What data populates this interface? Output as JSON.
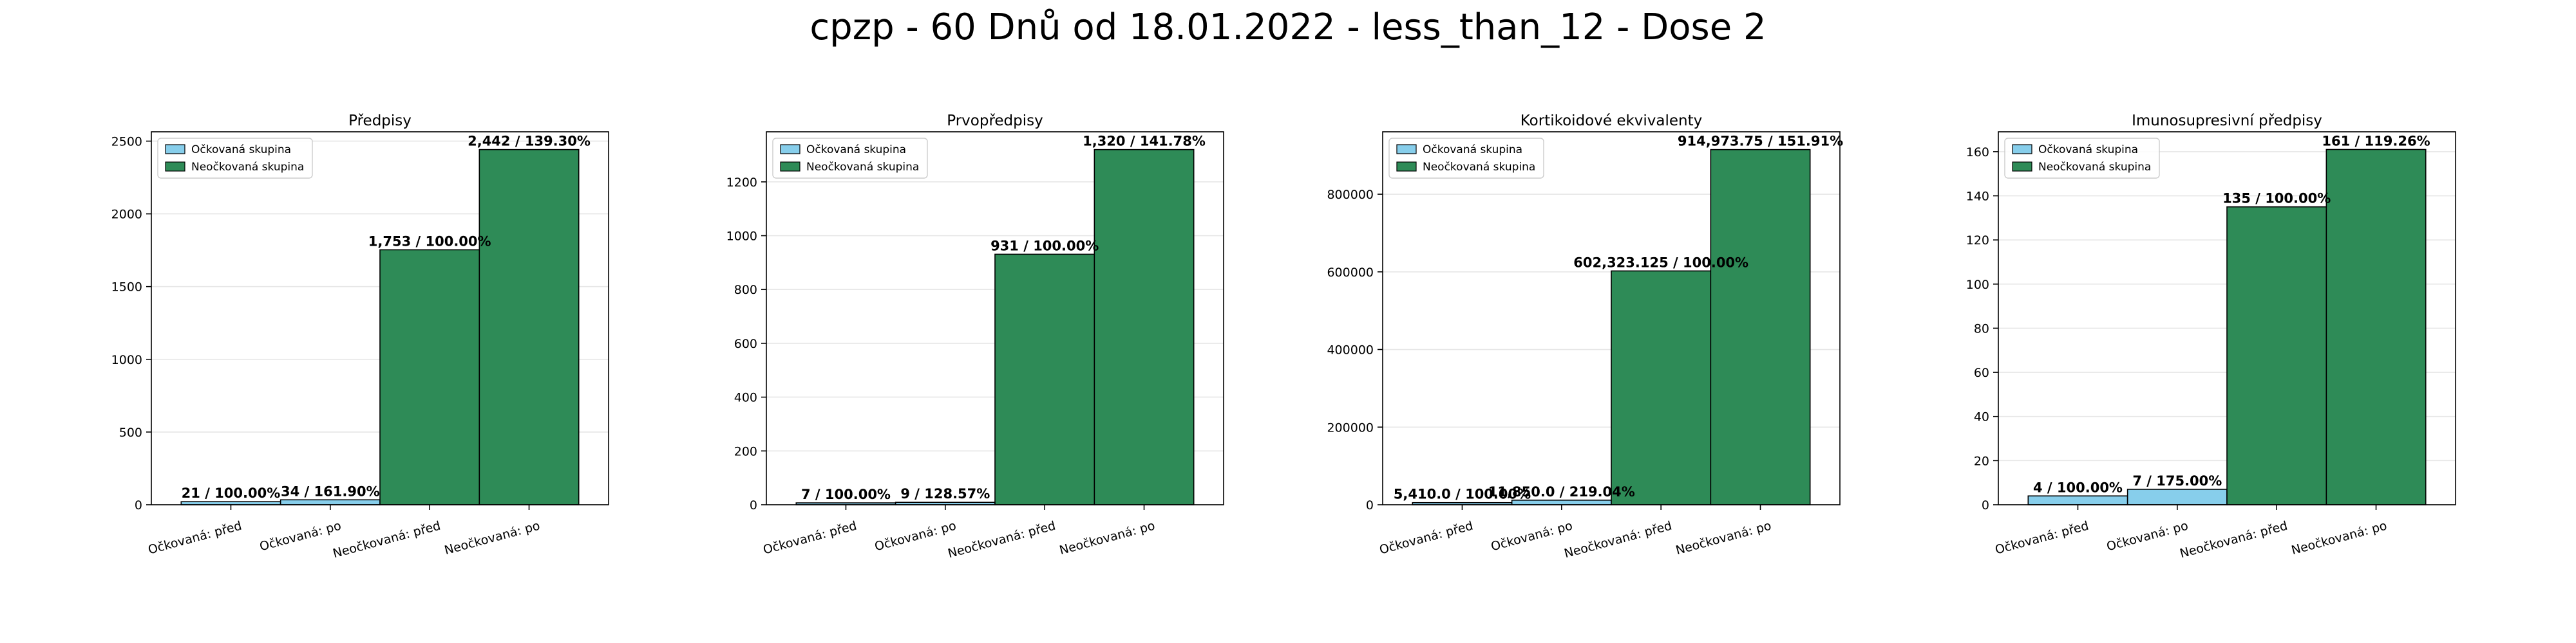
{
  "figure": {
    "suptitle": "cpzp - 60 Dnů od 18.01.2022 - less_than_12 - Dose 2"
  },
  "colors": {
    "vaccinated": "#87CEEB",
    "unvaccinated": "#2E8B57",
    "bar_edge": "#000000"
  },
  "legend": {
    "vaccinated_label": "Očkovaná skupina",
    "unvaccinated_label": "Neočkovaná skupina"
  },
  "chart_data": [
    {
      "type": "bar",
      "title": "Předpisy",
      "categories": [
        "Očkovaná: před",
        "Očkovaná: po",
        "Neočkovaná: před",
        "Neočkovaná: po"
      ],
      "values": [
        21,
        34,
        1753,
        2442
      ],
      "bar_labels": [
        "21 / 100.00%",
        "34 / 161.90%",
        "1,753 / 100.00%",
        "2,442 / 139.30%"
      ],
      "groups": [
        "vaccinated",
        "vaccinated",
        "unvaccinated",
        "unvaccinated"
      ],
      "yticks": [
        0,
        500,
        1000,
        1500,
        2000,
        2500
      ],
      "ylim": [
        0,
        2564
      ],
      "legend_position": "upper-left",
      "grid": "y"
    },
    {
      "type": "bar",
      "title": "Prvopředpisy",
      "categories": [
        "Očkovaná: před",
        "Očkovaná: po",
        "Neočkovaná: před",
        "Neočkovaná: po"
      ],
      "values": [
        7,
        9,
        931,
        1320
      ],
      "bar_labels": [
        "7 / 100.00%",
        "9 / 128.57%",
        "931 / 100.00%",
        "1,320 / 141.78%"
      ],
      "groups": [
        "vaccinated",
        "vaccinated",
        "unvaccinated",
        "unvaccinated"
      ],
      "yticks": [
        0,
        200,
        400,
        600,
        800,
        1000,
        1200
      ],
      "ylim": [
        0,
        1386
      ],
      "legend_position": "upper-left",
      "grid": "y"
    },
    {
      "type": "bar",
      "title": "Kortikoidové ekvivalenty",
      "categories": [
        "Očkovaná: před",
        "Očkovaná: po",
        "Neočkovaná: před",
        "Neočkovaná: po"
      ],
      "values": [
        5410.0,
        11850.0,
        602323.125,
        914973.75
      ],
      "bar_labels": [
        "5,410.0 / 100.00%",
        "11,850.0 / 219.04%",
        "602,323.125 / 100.00%",
        "914,973.75 / 151.91%"
      ],
      "groups": [
        "vaccinated",
        "vaccinated",
        "unvaccinated",
        "unvaccinated"
      ],
      "yticks": [
        0,
        200000,
        400000,
        600000,
        800000
      ],
      "ylim": [
        0,
        960722
      ],
      "legend_position": "upper-left",
      "grid": "y"
    },
    {
      "type": "bar",
      "title": "Imunosupresivní předpisy",
      "categories": [
        "Očkovaná: před",
        "Očkovaná: po",
        "Neočkovaná: před",
        "Neočkovaná: po"
      ],
      "values": [
        4,
        7,
        135,
        161
      ],
      "bar_labels": [
        "4 / 100.00%",
        "7 / 175.00%",
        "135 / 100.00%",
        "161 / 119.26%"
      ],
      "groups": [
        "vaccinated",
        "vaccinated",
        "unvaccinated",
        "unvaccinated"
      ],
      "yticks": [
        0,
        20,
        40,
        60,
        80,
        100,
        120,
        140,
        160
      ],
      "ylim": [
        0,
        169
      ],
      "legend_position": "upper-left",
      "grid": "y"
    }
  ]
}
